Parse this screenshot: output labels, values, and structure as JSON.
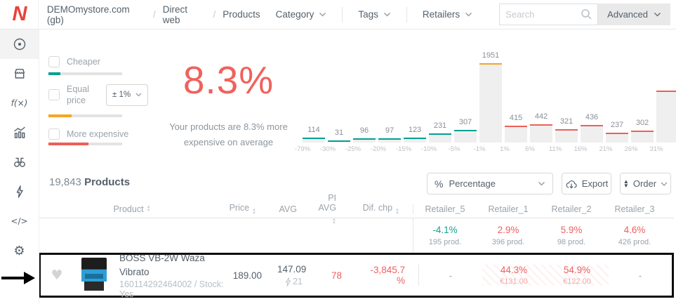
{
  "topbar": {
    "breadcrumb": {
      "store": "DEMOmystore.com (gb)",
      "separator": "/",
      "channel": "Direct web",
      "page": "Products"
    },
    "menus": {
      "category": "Category",
      "tags": "Tags",
      "retailers": "Retailers"
    },
    "search": {
      "placeholder": "Search"
    },
    "advanced_label": "Advanced"
  },
  "filters": {
    "cheaper": {
      "label": "Cheaper",
      "color": "#00a093",
      "share_pct": 16
    },
    "equal_price": {
      "label": "Equal price",
      "threshold": "± 1%",
      "color": "#f5a623",
      "share_pct": 31
    },
    "more_expensive": {
      "label": "More expensive",
      "color": "#ed5f58",
      "share_pct": 54
    }
  },
  "summary": {
    "headline": "8.3%",
    "description": "Your products are 8.3% more expensive on average",
    "accent_color": "#f0625d"
  },
  "chart_data": {
    "type": "bar",
    "bin_edges": [
      "-79%",
      "-30%",
      "-25%",
      "-20%",
      "-15%",
      "-10%",
      "-5%",
      "-1%",
      "1%",
      "6%",
      "11%",
      "16%",
      "21%",
      "26%",
      "31%"
    ],
    "values": [
      114,
      31,
      96,
      97,
      123,
      231,
      307,
      1951,
      415,
      442,
      321,
      436,
      237,
      302
    ],
    "tones": [
      "cheaper",
      "cheaper",
      "cheaper",
      "cheaper",
      "cheaper",
      "cheaper",
      "cheaper",
      "equal",
      "expensive",
      "expensive",
      "expensive",
      "expensive",
      "expensive",
      "expensive"
    ],
    "overflow_bar": {
      "cut_off": true,
      "tone": "expensive",
      "estimated_value": 1275
    },
    "colors": {
      "cheaper": "#00a093",
      "equal": "#f5a623",
      "expensive": "#ed5f58"
    },
    "ylim": [
      0,
      1951
    ],
    "grid": false,
    "legend": false
  },
  "products_bar": {
    "count": "19,843",
    "label": "Products",
    "unit_select": {
      "icon": "percent",
      "value": "Percentage"
    },
    "export_label": "Export",
    "order_label": "Order"
  },
  "table": {
    "columns": {
      "product": "Product",
      "price": "Price",
      "avg": "AVG",
      "pi_avg": "PI AVG",
      "dif_chp": "Dif. chp"
    },
    "retailer_columns": [
      "Retailer_5",
      "Retailer_1",
      "Retailer_2",
      "Retailer_3"
    ],
    "summary_row": [
      {
        "value": "-4.1%",
        "products": "195 prod.",
        "tone": "cheaper"
      },
      {
        "value": "2.9%",
        "products": "396 prod.",
        "tone": "expensive"
      },
      {
        "value": "5.9%",
        "products": "98 prod.",
        "tone": "expensive"
      },
      {
        "value": "4.6%",
        "products": "426 prod.",
        "tone": "expensive"
      }
    ],
    "product_row": {
      "name": "BOSS VB-2W Waza Vibrato",
      "meta": "160114292464002 / Stock: Yes",
      "price": "189.00",
      "avg": "147.09",
      "avg_retailers": "21",
      "pi_avg": "78",
      "dif_chp": "-3,845.7 %",
      "retailer_cells": [
        {
          "value": "-",
          "hatched": false
        },
        {
          "value": "44.3%",
          "price": "€131.00",
          "hatched": true
        },
        {
          "value": "54.9%",
          "price": "€122.00",
          "hatched": true
        },
        {
          "value": "-",
          "hatched": false
        }
      ]
    }
  }
}
